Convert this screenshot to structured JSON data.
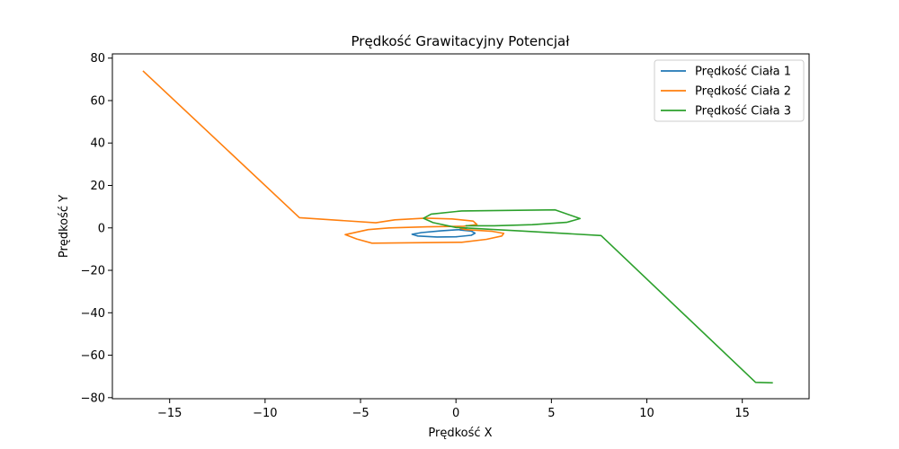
{
  "chart_data": {
    "type": "line",
    "title": "Prędkość Grawitacyjny Potencjał",
    "xlabel": "Prędkość X",
    "ylabel": "Prędkość Y",
    "xlim": [
      -18,
      18.5
    ],
    "ylim": [
      -80.5,
      82
    ],
    "xticks": [
      -15,
      -10,
      -5,
      0,
      5,
      10,
      15
    ],
    "yticks": [
      -80,
      -60,
      -40,
      -20,
      0,
      20,
      40,
      60,
      80
    ],
    "xtick_labels": [
      "−15",
      "−10",
      "−5",
      "0",
      "5",
      "10",
      "15"
    ],
    "ytick_labels": [
      "−80",
      "−60",
      "−40",
      "−20",
      "0",
      "20",
      "40",
      "60",
      "80"
    ],
    "grid": false,
    "legend_position": "top-right",
    "series": [
      {
        "name": "Prędkość Ciała 1",
        "color": "#1f77b4",
        "x": [
          0.2,
          0.8,
          1.0,
          0.8,
          0.0,
          -1.0,
          -2.0,
          -2.3,
          -1.8,
          -0.8,
          0.2,
          0.6
        ],
        "y": [
          -1.0,
          -1.5,
          -2.5,
          -3.5,
          -4.2,
          -4.3,
          -3.8,
          -3.0,
          -2.2,
          -1.4,
          -0.8,
          0.0
        ]
      },
      {
        "name": "Prędkość Ciała 2",
        "color": "#ff7f0e",
        "x": [
          -16.4,
          -8.2,
          -4.2,
          -3.2,
          -1.6,
          -0.2,
          0.9,
          1.1,
          0.4,
          -1.5,
          -3.5,
          -4.6,
          -5.8,
          -5.2,
          -4.4,
          0.3,
          1.6,
          2.4,
          2.5,
          1.9,
          0.5,
          0.2
        ],
        "y": [
          74.0,
          4.8,
          2.4,
          3.8,
          4.6,
          4.2,
          3.2,
          1.6,
          0.8,
          0.5,
          0.0,
          -0.8,
          -3.2,
          -5.2,
          -7.2,
          -6.8,
          -5.4,
          -3.8,
          -2.6,
          -1.6,
          -0.8,
          -0.2
        ]
      },
      {
        "name": "Prędkość Ciała 3",
        "color": "#2ca02c",
        "x": [
          16.6,
          15.7,
          7.6,
          3.5,
          0.0,
          -1.2,
          -1.7,
          -1.3,
          0.3,
          5.2,
          6.5,
          5.8,
          4.0,
          2.0,
          0.5
        ],
        "y": [
          -73.0,
          -72.8,
          -3.6,
          -1.5,
          0.2,
          2.5,
          4.5,
          6.5,
          8.0,
          8.5,
          4.4,
          2.6,
          1.5,
          1.0,
          1.0
        ]
      }
    ]
  }
}
